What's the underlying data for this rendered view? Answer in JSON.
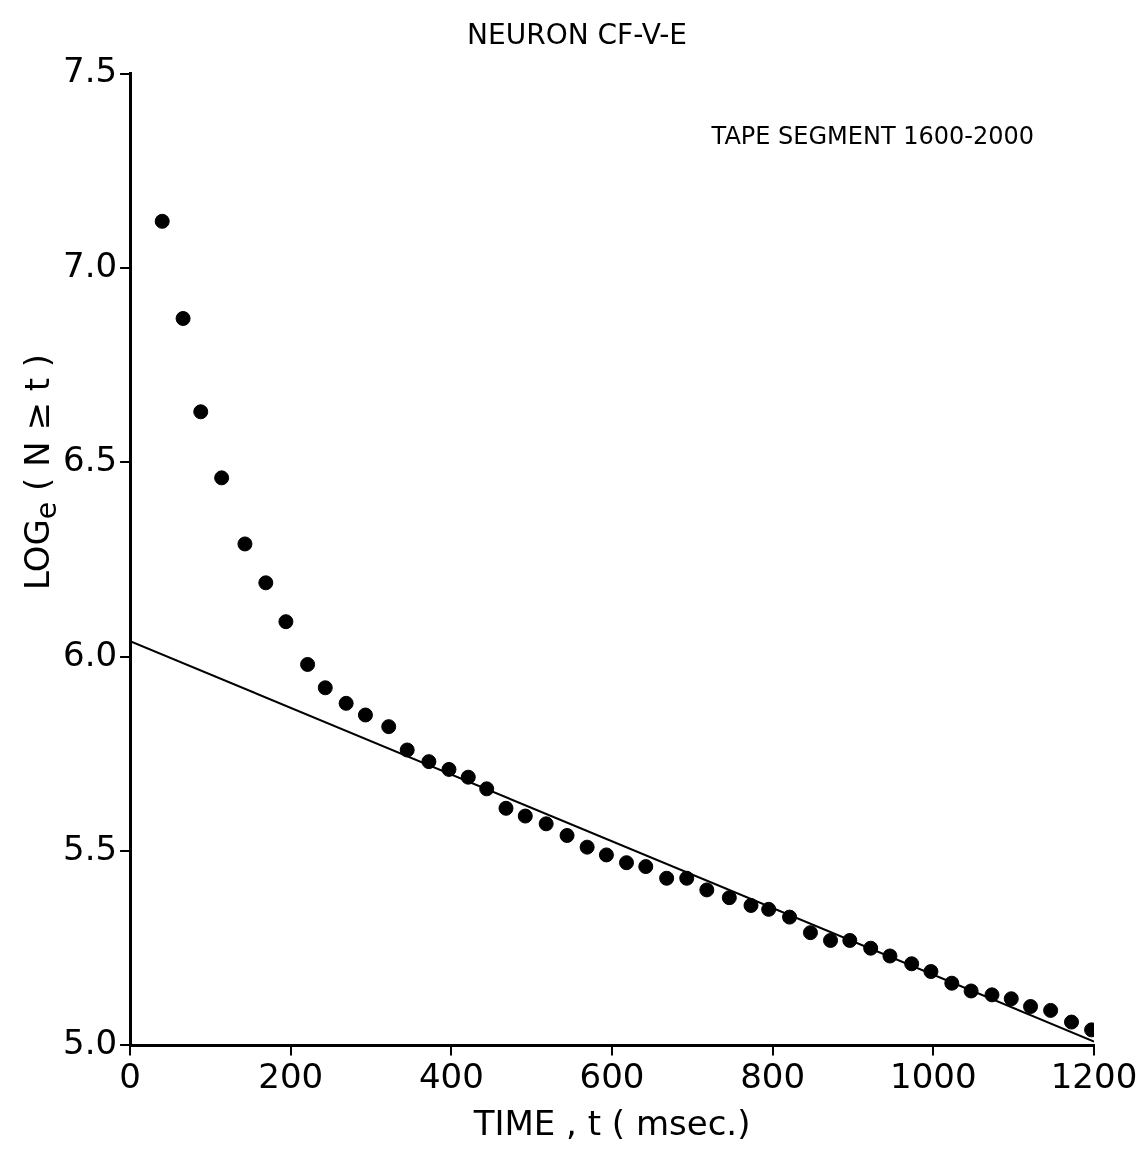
{
  "chart_data": {
    "type": "scatter",
    "title": "NEURON CF-V-E",
    "xlabel": "TIME , t ( msec.)",
    "ylabel": "LOG$_{e}$ ( N ≥ t )",
    "annotations": [
      "TAPE SEGMENT 1600-2000"
    ],
    "xlim": [
      0,
      1200
    ],
    "xticks": [
      0,
      200,
      400,
      600,
      800,
      1000,
      1200
    ],
    "ylim": [
      5.0,
      7.5
    ],
    "yticks": [
      {
        "value": 5,
        "label": "5.0"
      },
      5.5,
      {
        "value": 6,
        "label": "6.0"
      },
      6.5,
      {
        "value": 7,
        "label": "7.0"
      },
      7.5
    ],
    "legend": false,
    "grid": false,
    "series": [
      {
        "color": "#000000",
        "marker": "circle",
        "x": [
          40,
          66,
          88,
          114,
          143,
          169,
          194,
          221,
          243,
          269,
          293,
          322,
          345,
          372,
          397,
          421,
          444,
          468,
          492,
          518,
          544,
          569,
          593,
          618,
          642,
          668,
          693,
          718,
          746,
          773,
          795,
          821,
          847,
          872,
          896,
          922,
          946,
          973,
          997,
          1023,
          1047,
          1073,
          1097,
          1121,
          1146,
          1172,
          1197
        ],
        "values": [
          7.12,
          6.87,
          6.63,
          6.46,
          6.29,
          6.19,
          6.09,
          5.98,
          5.92,
          5.88,
          5.85,
          5.82,
          5.76,
          5.73,
          5.71,
          5.69,
          5.66,
          5.61,
          5.59,
          5.57,
          5.54,
          5.51,
          5.49,
          5.47,
          5.46,
          5.43,
          5.43,
          5.4,
          5.38,
          5.36,
          5.35,
          5.33,
          5.29,
          5.27,
          5.27,
          5.25,
          5.23,
          5.21,
          5.19,
          5.16,
          5.14,
          5.13,
          5.12,
          5.1,
          5.09,
          5.06,
          5.04
        ]
      },
      {
        "type": "line",
        "color": "#000000",
        "marker": "none",
        "x": [
          0,
          1200
        ],
        "values": [
          6.04,
          5.01
        ]
      }
    ]
  }
}
